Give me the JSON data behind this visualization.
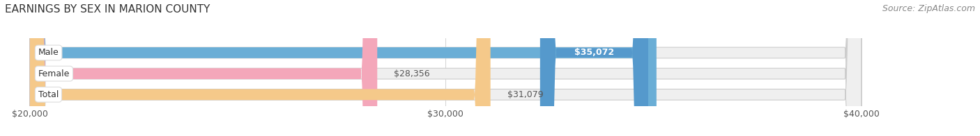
{
  "title": "EARNINGS BY SEX IN MARION COUNTY",
  "source": "Source: ZipAtlas.com",
  "categories": [
    "Male",
    "Female",
    "Total"
  ],
  "values": [
    35072,
    28356,
    31079
  ],
  "bar_colors": [
    "#6aaed6",
    "#f4a7ba",
    "#f5c98a"
  ],
  "bar_edge_colors": [
    "#5a9ec6",
    "#e497aa",
    "#e0b870"
  ],
  "xmin": 20000,
  "xmax": 40000,
  "xticks": [
    20000,
    30000,
    40000
  ],
  "xtick_labels": [
    "$20,000",
    "$30,000",
    "$40,000"
  ],
  "value_labels": [
    "$35,072",
    "$28,356",
    "$31,079"
  ],
  "value_label_colors": [
    "#ffffff",
    "#555555",
    "#555555"
  ],
  "background_color": "#ffffff",
  "bar_bg_color": "#efefef",
  "title_fontsize": 11,
  "source_fontsize": 9,
  "tick_fontsize": 9,
  "cat_label_fontsize": 9,
  "value_label_fontsize": 9
}
